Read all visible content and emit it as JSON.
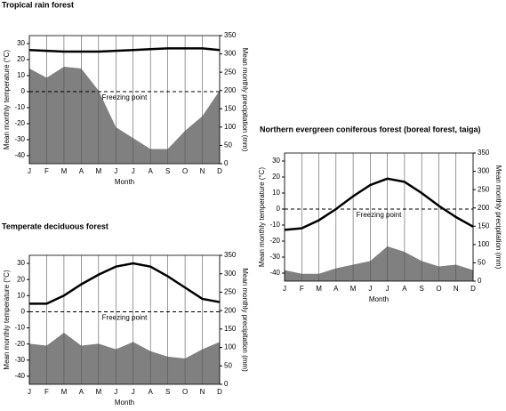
{
  "chart_data": [
    {
      "type": "climate",
      "title": "Tropical rain forest",
      "categories": [
        "J",
        "F",
        "M",
        "A",
        "M",
        "J",
        "J",
        "A",
        "S",
        "O",
        "N",
        "D"
      ],
      "x_label": "Month",
      "y_label": "Mean monthly temperature (°C)",
      "y2_label": "Mean monthly precipitation (mm)",
      "annotation": "Freezing point",
      "series": [
        {
          "name": "Temperature",
          "color": "#000000",
          "values": [
            26,
            25.5,
            25,
            25,
            25,
            25.5,
            26,
            26.5,
            27,
            27,
            27,
            26
          ]
        },
        {
          "name": "Precipitation",
          "color": "#808080",
          "axis": "y2",
          "values": [
            260,
            235,
            265,
            260,
            200,
            100,
            70,
            40,
            40,
            90,
            130,
            200
          ]
        }
      ],
      "ylim": [
        -45,
        35
      ],
      "yticks": [
        -40,
        -30,
        -20,
        -10,
        0,
        10,
        20,
        30
      ],
      "y2lim": [
        0,
        350
      ],
      "y2ticks": [
        0,
        50,
        100,
        150,
        200,
        250,
        300,
        350
      ],
      "grid": true
    },
    {
      "type": "climate",
      "title": "Temperate deciduous forest",
      "categories": [
        "J",
        "F",
        "M",
        "A",
        "M",
        "J",
        "J",
        "A",
        "S",
        "O",
        "N",
        "D"
      ],
      "x_label": "Month",
      "y_label": "Mean monthly temperature (°C)",
      "y2_label": "Mean monthly precipitation (mm)",
      "annotation": "Freezing point",
      "series": [
        {
          "name": "Temperature",
          "color": "#000000",
          "values": [
            5,
            5,
            10,
            17,
            23,
            28,
            30,
            28,
            22,
            15,
            8,
            6
          ]
        },
        {
          "name": "Precipitation",
          "color": "#808080",
          "axis": "y2",
          "values": [
            110,
            105,
            140,
            105,
            110,
            95,
            115,
            90,
            75,
            70,
            95,
            115
          ]
        }
      ],
      "ylim": [
        -45,
        35
      ],
      "yticks": [
        -40,
        -30,
        -20,
        -10,
        0,
        10,
        20,
        30
      ],
      "y2lim": [
        0,
        350
      ],
      "y2ticks": [
        0,
        50,
        100,
        150,
        200,
        250,
        300,
        350
      ],
      "grid": true
    },
    {
      "type": "climate",
      "title": "Northern evergreen coniferous forest (boreal forest, taiga)",
      "categories": [
        "J",
        "F",
        "M",
        "A",
        "M",
        "J",
        "J",
        "A",
        "S",
        "O",
        "N",
        "D"
      ],
      "x_label": "Month",
      "y_label": "Mean monthly temperature (°C)",
      "y2_label": "Mean monthly precipitation (mm)",
      "annotation": "Freezing point",
      "series": [
        {
          "name": "Temperature",
          "color": "#000000",
          "values": [
            -13,
            -12,
            -7,
            0,
            8,
            15,
            19,
            17,
            10,
            2,
            -5,
            -11
          ]
        },
        {
          "name": "Precipitation",
          "color": "#808080",
          "axis": "y2",
          "values": [
            30,
            20,
            20,
            35,
            45,
            55,
            95,
            80,
            55,
            40,
            45,
            30
          ]
        }
      ],
      "ylim": [
        -45,
        35
      ],
      "yticks": [
        -40,
        -30,
        -20,
        -10,
        0,
        10,
        20,
        30
      ],
      "y2lim": [
        0,
        350
      ],
      "y2ticks": [
        0,
        50,
        100,
        150,
        200,
        250,
        300,
        350
      ],
      "grid": true
    }
  ]
}
